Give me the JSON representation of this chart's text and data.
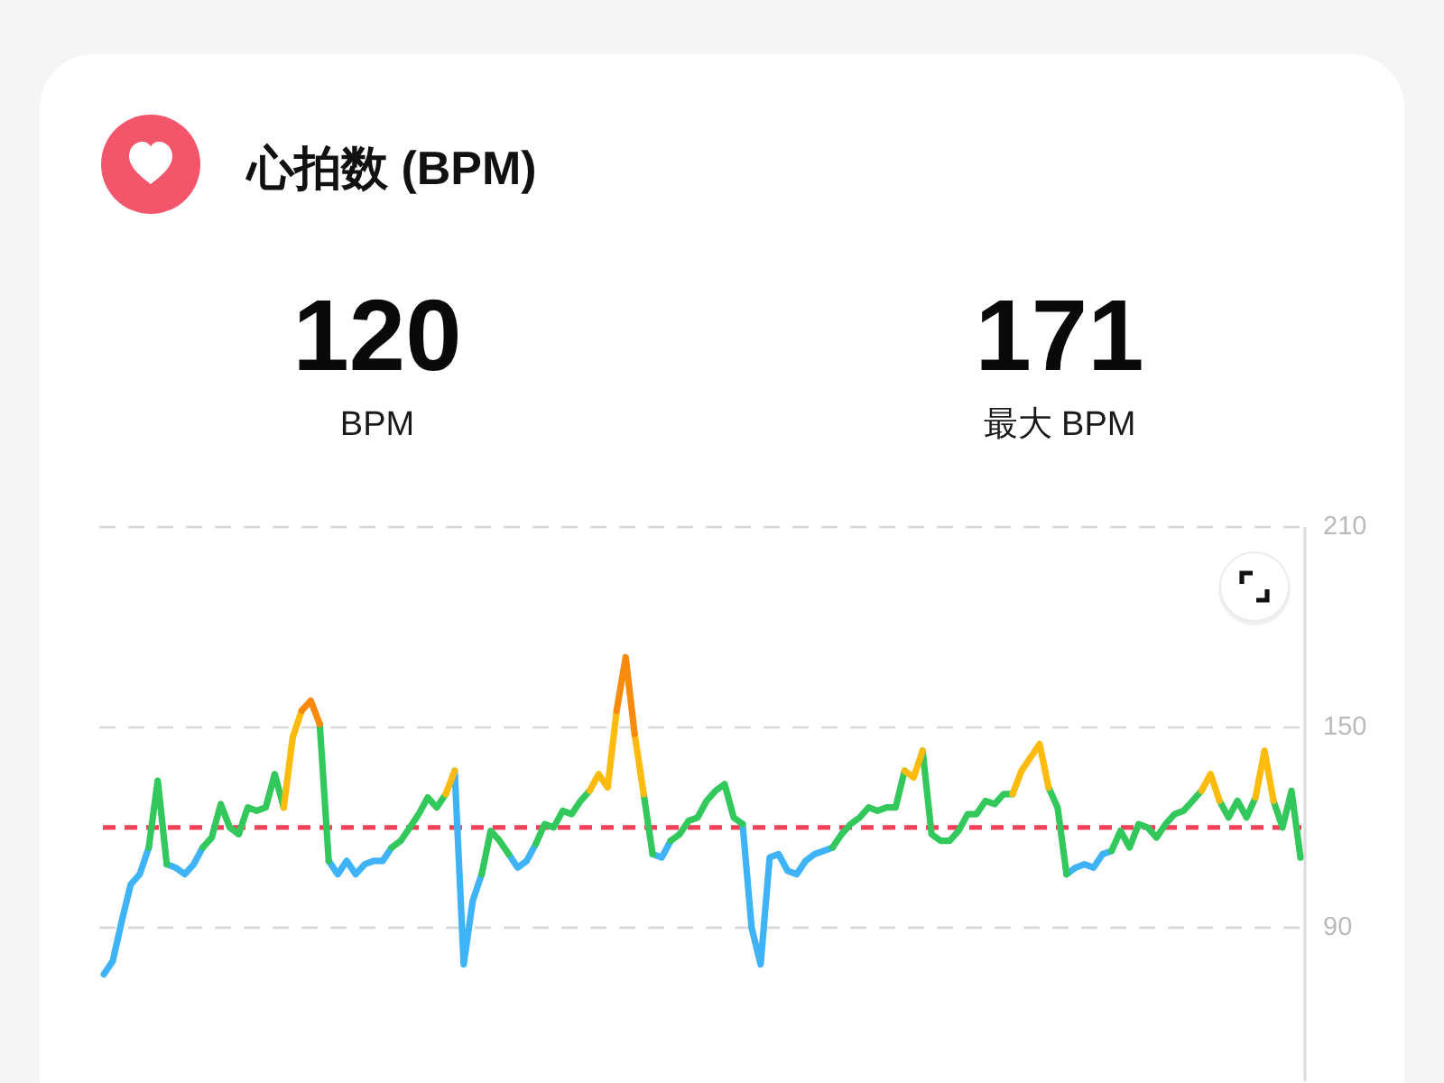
{
  "chart_data": {
    "type": "line",
    "title": "心拍数 (BPM)",
    "annotations": [
      "120",
      "BPM",
      "171",
      "最大 BPM"
    ],
    "categories": [
      null,
      null,
      null,
      null,
      null,
      null,
      null,
      null,
      null,
      null,
      null,
      null,
      null,
      null,
      null,
      null,
      null,
      null,
      null,
      null,
      null,
      null,
      null,
      null,
      null,
      null,
      null,
      null,
      null,
      null,
      null,
      null,
      null,
      null,
      null,
      null,
      null,
      null,
      null,
      null,
      null,
      null,
      null,
      null,
      null,
      null,
      null,
      null,
      null,
      null,
      null,
      null,
      null,
      null,
      null,
      null,
      null,
      null,
      null,
      null,
      null,
      null,
      null,
      null,
      null,
      null,
      null,
      null,
      null,
      null,
      null,
      null,
      null,
      null,
      null,
      null,
      null,
      null,
      null,
      null,
      null,
      null,
      null,
      null,
      null,
      null,
      null,
      null,
      null,
      null,
      null,
      null,
      null,
      null,
      null,
      null,
      null,
      null,
      null,
      null,
      null,
      null,
      null,
      null,
      null,
      null,
      null,
      null,
      null,
      null,
      null,
      null,
      null,
      null,
      null,
      null,
      null,
      null,
      null,
      null,
      null,
      null,
      null,
      null,
      null,
      null,
      null,
      null,
      null,
      null,
      null,
      null,
      null,
      null
    ],
    "series": [
      {
        "color": "#3fb3f7",
        "values": [
          76,
          80,
          92,
          103,
          106,
          114,
          null,
          109,
          108,
          106,
          109,
          114,
          null,
          null,
          null,
          null,
          null,
          null,
          null,
          null,
          null,
          null,
          null,
          null,
          null,
          110,
          106,
          110,
          106,
          109,
          110,
          110,
          114,
          null,
          null,
          null,
          null,
          null,
          null,
          137,
          79,
          98,
          106,
          null,
          null,
          112,
          108,
          110,
          115,
          null,
          null,
          null,
          null,
          null,
          null,
          null,
          null,
          null,
          null,
          null,
          null,
          112,
          111,
          116,
          null,
          null,
          null,
          null,
          null,
          null,
          null,
          121,
          90,
          79,
          111,
          112,
          107,
          106,
          110,
          112,
          113,
          114,
          null,
          null,
          null,
          null,
          null,
          null,
          null,
          null,
          null,
          null,
          null,
          null,
          null,
          null,
          null,
          null,
          null,
          null,
          null,
          null,
          null,
          null,
          null,
          null,
          null,
          106,
          108,
          109,
          108,
          112,
          113,
          null,
          null,
          null,
          null,
          null,
          null,
          null,
          null,
          null,
          null,
          null,
          null,
          null,
          null,
          null,
          null,
          null,
          null,
          null,
          null,
          null
        ]
      },
      {
        "color": "#33c85c",
        "values": [
          null,
          null,
          null,
          null,
          null,
          114,
          134,
          109,
          null,
          null,
          null,
          114,
          117,
          127,
          120,
          118,
          126,
          125,
          126,
          136,
          126,
          null,
          null,
          null,
          151,
          110,
          null,
          null,
          null,
          null,
          null,
          null,
          114,
          116,
          120,
          124,
          129,
          126,
          130,
          null,
          null,
          null,
          106,
          119,
          116,
          112,
          null,
          null,
          115,
          121,
          120,
          125,
          124,
          128,
          131,
          null,
          null,
          null,
          null,
          null,
          130,
          112,
          null,
          116,
          118,
          122,
          123,
          128,
          131,
          133,
          123,
          121,
          null,
          null,
          null,
          null,
          null,
          null,
          null,
          null,
          null,
          114,
          118,
          121,
          123,
          126,
          125,
          126,
          126,
          137,
          null,
          143,
          118,
          116,
          116,
          119,
          124,
          124,
          128,
          127,
          130,
          130,
          null,
          null,
          null,
          132,
          126,
          106,
          null,
          null,
          null,
          null,
          113,
          119,
          114,
          121,
          120,
          117,
          121,
          124,
          125,
          128,
          131,
          null,
          128,
          123,
          128,
          123,
          129,
          null,
          128,
          120,
          131,
          111
        ]
      },
      {
        "color": "#fdbb0d",
        "values": [
          null,
          null,
          null,
          null,
          null,
          null,
          null,
          null,
          null,
          null,
          null,
          null,
          null,
          null,
          null,
          null,
          null,
          null,
          null,
          null,
          126,
          147,
          155,
          null,
          null,
          null,
          null,
          null,
          null,
          null,
          null,
          null,
          null,
          null,
          null,
          null,
          null,
          null,
          130,
          137,
          null,
          null,
          null,
          null,
          null,
          null,
          null,
          null,
          null,
          null,
          null,
          null,
          null,
          null,
          131,
          136,
          132,
          155,
          null,
          148,
          130,
          null,
          null,
          null,
          null,
          null,
          null,
          null,
          null,
          null,
          null,
          null,
          null,
          null,
          null,
          null,
          null,
          null,
          null,
          null,
          null,
          null,
          null,
          null,
          null,
          null,
          null,
          null,
          null,
          137,
          135,
          143,
          null,
          null,
          null,
          null,
          null,
          null,
          null,
          null,
          null,
          130,
          137,
          141,
          145,
          132,
          null,
          null,
          null,
          null,
          null,
          null,
          null,
          null,
          null,
          null,
          null,
          null,
          null,
          null,
          null,
          null,
          131,
          136,
          128,
          null,
          null,
          null,
          129,
          143,
          128,
          null,
          null,
          null
        ]
      },
      {
        "color": "#fa8a0c",
        "values": [
          null,
          null,
          null,
          null,
          null,
          null,
          null,
          null,
          null,
          null,
          null,
          null,
          null,
          null,
          null,
          null,
          null,
          null,
          null,
          null,
          null,
          null,
          155,
          158,
          151,
          null,
          null,
          null,
          null,
          null,
          null,
          null,
          null,
          null,
          null,
          null,
          null,
          null,
          null,
          null,
          null,
          null,
          null,
          null,
          null,
          null,
          null,
          null,
          null,
          null,
          null,
          null,
          null,
          null,
          null,
          null,
          null,
          155,
          171,
          148,
          null,
          null,
          null,
          null,
          null,
          null,
          null,
          null,
          null,
          null,
          null,
          null,
          null,
          null,
          null,
          null,
          null,
          null,
          null,
          null,
          null,
          null,
          null,
          null,
          null,
          null,
          null,
          null,
          null,
          null,
          null,
          null,
          null,
          null,
          null,
          null,
          null,
          null,
          null,
          null,
          null,
          null,
          null,
          null,
          null,
          null,
          null,
          null,
          null,
          null,
          null,
          null,
          null,
          null,
          null,
          null,
          null,
          null,
          null,
          null,
          null,
          null,
          null,
          null,
          null,
          null,
          null,
          null,
          null,
          null,
          null,
          null,
          null,
          null
        ]
      }
    ],
    "ylim": [
      44,
      210
    ],
    "yticks": [
      90,
      150,
      210
    ],
    "grid": "y",
    "tick_labels": "y",
    "ref_lines": [
      {
        "axis": "y",
        "value": 120,
        "color": "#f2405a",
        "line_style": "dashed"
      }
    ]
  }
}
